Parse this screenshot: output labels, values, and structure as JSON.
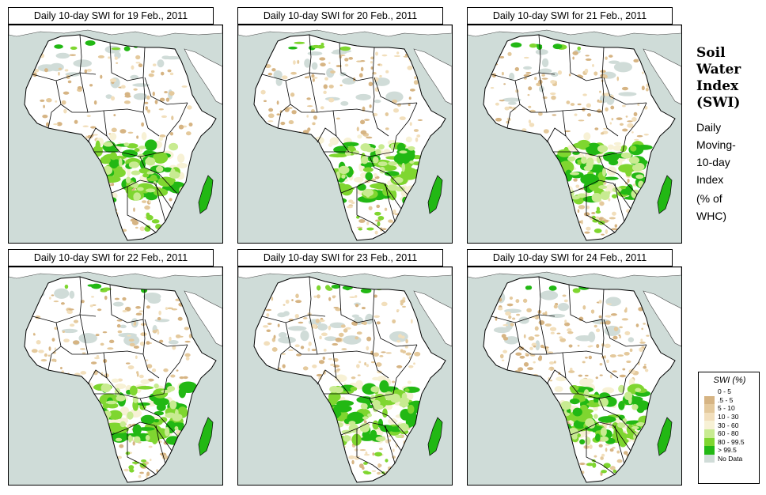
{
  "panels": [
    {
      "title": "Daily 10-day SWI for  19 Feb., 2011",
      "state": 0
    },
    {
      "title": "Daily 10-day SWI for  20 Feb., 2011",
      "state": 1
    },
    {
      "title": "Daily 10-day SWI for  21 Feb., 2011",
      "state": 2
    },
    {
      "title": "Daily 10-day SWI for  22 Feb., 2011",
      "state": 3
    },
    {
      "title": "Daily 10-day SWI for  23 Feb., 2011",
      "state": 4
    },
    {
      "title": "Daily 10-day SWI for  24 Feb., 2011",
      "state": 5
    }
  ],
  "side_title": [
    "Soil",
    "Water",
    "Index",
    "(SWI)"
  ],
  "side_subtitle": [
    "Daily",
    "Moving-",
    "10-day",
    "Index"
  ],
  "side_units": [
    "(% of",
    "WHC)"
  ],
  "legend": {
    "title": "SWI (%)",
    "classes": [
      {
        "label": "0 - 5",
        "color": "#ffffff"
      },
      {
        "label": ".5 - 5",
        "color": "#d6b483"
      },
      {
        "label": "5 - 10",
        "color": "#e4c99c"
      },
      {
        "label": "10 - 30",
        "color": "#f2dfbc"
      },
      {
        "label": "30 - 60",
        "color": "#f7f1d5"
      },
      {
        "label": "60 - 80",
        "color": "#c8eb91"
      },
      {
        "label": "80 - 99.5",
        "color": "#7fd630"
      },
      {
        "label": "> 99.5",
        "color": "#22b814"
      },
      {
        "label": "No Data",
        "color": "#d0dcd8"
      }
    ]
  },
  "colors": {
    "ocean": "#cfdcd8",
    "land": "#ffffff",
    "border": "#000000",
    "madagascar": "#22b814"
  }
}
